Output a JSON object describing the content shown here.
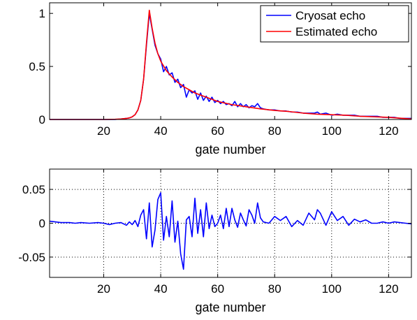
{
  "chart_data": [
    {
      "type": "line",
      "xlabel": "gate number",
      "ylabel": "",
      "xlim": [
        1,
        128
      ],
      "ylim": [
        0,
        1.1
      ],
      "xticks": [
        20,
        40,
        60,
        80,
        100,
        120
      ],
      "yticks": [
        0,
        0.5,
        1
      ],
      "ytick_labels": [
        "0",
        "0.5",
        "1"
      ],
      "grid": false,
      "legend": "top-right",
      "series": [
        {
          "name": "Cryosat echo",
          "color": "#0000ff",
          "x": [
            1,
            5,
            10,
            15,
            20,
            24,
            26,
            28,
            29,
            30,
            31,
            32,
            33,
            34,
            35,
            36,
            37,
            38,
            39,
            40,
            41,
            42,
            43,
            44,
            45,
            46,
            47,
            48,
            49,
            50,
            51,
            52,
            53,
            54,
            55,
            56,
            57,
            58,
            59,
            60,
            61,
            62,
            63,
            64,
            65,
            66,
            67,
            68,
            69,
            70,
            71,
            72,
            73,
            74,
            75,
            76,
            78,
            80,
            82,
            84,
            86,
            88,
            90,
            92,
            94,
            95,
            96,
            98,
            100,
            102,
            104,
            106,
            108,
            110,
            112,
            114,
            116,
            118,
            120,
            122,
            124,
            126,
            128
          ],
          "y": [
            0,
            0,
            0,
            0,
            0,
            0,
            0.005,
            0.01,
            0.015,
            0.025,
            0.045,
            0.09,
            0.18,
            0.38,
            0.7,
            1.0,
            0.85,
            0.7,
            0.62,
            0.57,
            0.45,
            0.5,
            0.42,
            0.44,
            0.35,
            0.38,
            0.3,
            0.33,
            0.21,
            0.28,
            0.25,
            0.27,
            0.19,
            0.25,
            0.18,
            0.22,
            0.17,
            0.21,
            0.16,
            0.18,
            0.15,
            0.17,
            0.14,
            0.15,
            0.13,
            0.17,
            0.12,
            0.15,
            0.12,
            0.14,
            0.11,
            0.13,
            0.12,
            0.15,
            0.11,
            0.1,
            0.09,
            0.09,
            0.08,
            0.08,
            0.07,
            0.07,
            0.06,
            0.06,
            0.06,
            0.07,
            0.05,
            0.06,
            0.04,
            0.05,
            0.04,
            0.04,
            0.04,
            0.03,
            0.03,
            0.03,
            0.03,
            0.02,
            0.02,
            0.02,
            0.01,
            0.01,
            0.01
          ]
        },
        {
          "name": "Estimated echo",
          "color": "#ff0000",
          "x": [
            1,
            10,
            20,
            24,
            26,
            28,
            29,
            30,
            31,
            32,
            33,
            34,
            35,
            36,
            37,
            38,
            39,
            40,
            42,
            44,
            46,
            48,
            50,
            52,
            54,
            56,
            58,
            60,
            65,
            70,
            75,
            80,
            85,
            90,
            95,
            100,
            105,
            110,
            115,
            120,
            125,
            128
          ],
          "y": [
            0,
            0,
            0,
            0.002,
            0.005,
            0.01,
            0.015,
            0.025,
            0.045,
            0.09,
            0.18,
            0.38,
            0.72,
            1.03,
            0.86,
            0.72,
            0.62,
            0.55,
            0.46,
            0.4,
            0.35,
            0.31,
            0.28,
            0.25,
            0.23,
            0.21,
            0.19,
            0.17,
            0.14,
            0.12,
            0.1,
            0.085,
            0.075,
            0.06,
            0.05,
            0.045,
            0.04,
            0.03,
            0.025,
            0.02,
            0.01,
            0.005
          ]
        }
      ]
    },
    {
      "type": "line",
      "xlabel": "gate number",
      "ylabel": "",
      "xlim": [
        1,
        128
      ],
      "ylim": [
        -0.08,
        0.08
      ],
      "xticks": [
        20,
        40,
        60,
        80,
        100,
        120
      ],
      "yticks": [
        -0.05,
        0,
        0.05
      ],
      "ytick_labels": [
        "-0.05",
        "0",
        "0.05"
      ],
      "grid": true,
      "series": [
        {
          "color": "#0000ff",
          "x": [
            1,
            3,
            5,
            8,
            10,
            12,
            15,
            18,
            20,
            22,
            24,
            26,
            28,
            29,
            30,
            31,
            32,
            33,
            34,
            35,
            36,
            37,
            38,
            39,
            40,
            41,
            42,
            43,
            44,
            45,
            46,
            47,
            48,
            49,
            50,
            51,
            52,
            53,
            54,
            55,
            56,
            57,
            58,
            59,
            60,
            61,
            62,
            63,
            64,
            65,
            66,
            67,
            68,
            69,
            70,
            71,
            72,
            73,
            74,
            75,
            76,
            78,
            80,
            82,
            84,
            86,
            88,
            90,
            92,
            94,
            95,
            96,
            98,
            100,
            102,
            104,
            106,
            108,
            110,
            112,
            114,
            116,
            118,
            120,
            122,
            124,
            126,
            128
          ],
          "y": [
            0.003,
            0.002,
            0.001,
            0.001,
            0,
            0.001,
            0,
            0.001,
            0,
            -0.002,
            0,
            0.001,
            -0.003,
            0.002,
            -0.002,
            0.004,
            -0.005,
            0.012,
            0.02,
            -0.023,
            0.03,
            -0.035,
            -0.01,
            0.035,
            0.045,
            -0.025,
            0.01,
            -0.02,
            0.033,
            -0.028,
            0.003,
            -0.045,
            -0.068,
            0.005,
            0.01,
            -0.02,
            0.037,
            -0.015,
            0.02,
            -0.02,
            0.03,
            -0.008,
            0.012,
            -0.005,
            0.0,
            0.012,
            -0.008,
            0.022,
            -0.005,
            0.022,
            0.005,
            -0.006,
            0.015,
            0.005,
            -0.004,
            0.02,
            0.012,
            0.0,
            0.03,
            0.008,
            0.002,
            0,
            0.01,
            0.004,
            0.01,
            -0.005,
            0.004,
            -0.003,
            0.015,
            0.005,
            0.02,
            0.015,
            -0.003,
            0.017,
            0.004,
            0.01,
            -0.003,
            0.006,
            0.002,
            0.005,
            0.0,
            0.0,
            0.002,
            0.0,
            0.002,
            0.001,
            0.0,
            -0.001
          ]
        }
      ]
    }
  ]
}
